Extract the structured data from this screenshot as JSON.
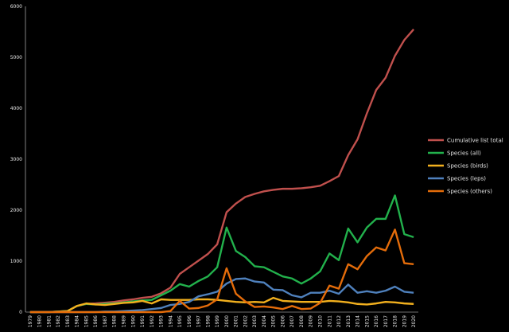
{
  "chart_data": {
    "type": "line",
    "x": [
      "1979",
      "1980",
      "1981",
      "1982",
      "1983",
      "1984",
      "1985",
      "1986",
      "1987",
      "1988",
      "1989",
      "1990",
      "1991",
      "1992",
      "1993",
      "1994",
      "1995",
      "1996",
      "1997",
      "1998",
      "1999",
      "2000",
      "2001",
      "2002",
      "2003",
      "2004",
      "2005",
      "2006",
      "2007",
      "2008",
      "2009",
      "2010",
      "2011",
      "2012",
      "2013",
      "2014",
      "2015",
      "2016",
      "2017",
      "2018",
      "2019",
      "2020"
    ],
    "ylim": [
      0,
      6000
    ],
    "yticks": [
      "0",
      "1000",
      "2000",
      "3000",
      "4000",
      "5000",
      "6000"
    ],
    "grid": false,
    "legend_position": "right",
    "series": [
      {
        "name": "Cumulative list total",
        "color": "#c0504d",
        "values": [
          0,
          0,
          0,
          10,
          20,
          120,
          160,
          170,
          185,
          200,
          230,
          250,
          280,
          300,
          370,
          480,
          750,
          880,
          1010,
          1140,
          1330,
          1960,
          2130,
          2260,
          2320,
          2370,
          2400,
          2420,
          2420,
          2430,
          2450,
          2480,
          2570,
          2670,
          3080,
          3390,
          3900,
          4360,
          4600,
          5030,
          5340,
          5550
        ]
      },
      {
        "name": "Species (all)",
        "color": "#22b14c",
        "values": [
          0,
          0,
          0,
          10,
          20,
          120,
          160,
          150,
          160,
          170,
          190,
          210,
          230,
          240,
          330,
          420,
          550,
          500,
          610,
          700,
          880,
          1660,
          1200,
          1080,
          900,
          880,
          790,
          700,
          660,
          560,
          660,
          800,
          1150,
          1020,
          1640,
          1370,
          1660,
          1830,
          1830,
          2290,
          1530,
          1470
        ]
      },
      {
        "name": "Species (birds)",
        "color": "#f2b01e",
        "values": [
          0,
          0,
          0,
          10,
          20,
          120,
          170,
          150,
          140,
          160,
          180,
          190,
          220,
          170,
          250,
          240,
          240,
          240,
          250,
          250,
          240,
          220,
          200,
          190,
          200,
          190,
          280,
          220,
          210,
          200,
          200,
          200,
          220,
          210,
          190,
          160,
          150,
          170,
          200,
          190,
          170,
          160
        ]
      },
      {
        "name": "Species (leps)",
        "color": "#4f81bd",
        "values": [
          0,
          0,
          0,
          0,
          0,
          0,
          0,
          0,
          10,
          10,
          20,
          30,
          40,
          60,
          80,
          140,
          160,
          200,
          310,
          350,
          400,
          560,
          650,
          660,
          600,
          580,
          440,
          430,
          330,
          290,
          380,
          380,
          420,
          360,
          540,
          380,
          410,
          380,
          420,
          500,
          400,
          380
        ]
      },
      {
        "name": "Species (others)",
        "color": "#e46c0a",
        "values": [
          0,
          0,
          0,
          0,
          0,
          0,
          0,
          0,
          0,
          0,
          0,
          0,
          0,
          0,
          0,
          20,
          220,
          70,
          80,
          130,
          250,
          860,
          360,
          210,
          100,
          110,
          90,
          60,
          120,
          60,
          70,
          180,
          520,
          460,
          940,
          840,
          1100,
          1270,
          1210,
          1620,
          960,
          940
        ]
      }
    ]
  }
}
